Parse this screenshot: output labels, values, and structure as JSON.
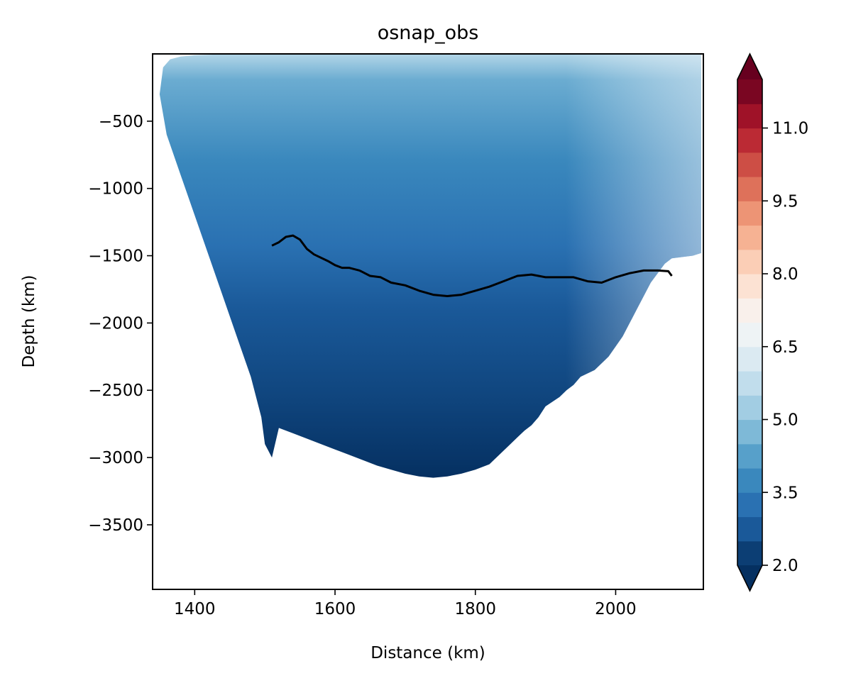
{
  "chart_data": {
    "type": "contour",
    "title": "osnap_obs",
    "xlabel": "Distance (km)",
    "ylabel": "Depth (km)",
    "xlim": [
      1340,
      2125
    ],
    "ylim": [
      -3980,
      0
    ],
    "x_ticks": [
      {
        "value": 1400,
        "label": "1400"
      },
      {
        "value": 1600,
        "label": "1600"
      },
      {
        "value": 1800,
        "label": "1800"
      },
      {
        "value": 2000,
        "label": "2000"
      }
    ],
    "y_ticks": [
      {
        "value": -500,
        "label": "−500"
      },
      {
        "value": -1000,
        "label": "−1000"
      },
      {
        "value": -1500,
        "label": "−1500"
      },
      {
        "value": -2000,
        "label": "−2000"
      },
      {
        "value": -2500,
        "label": "−2500"
      },
      {
        "value": -3000,
        "label": "−3000"
      },
      {
        "value": -3500,
        "label": "−3500"
      }
    ],
    "grid": false,
    "colorbar": {
      "placement": "right",
      "extend": "both",
      "colormap": "RdBu_r",
      "min": 2.0,
      "max": 12.0,
      "step": 0.5,
      "tick_values": [
        2.0,
        3.5,
        5.0,
        6.5,
        8.0,
        9.5,
        11.0
      ],
      "tick_labels": [
        "2.0",
        "3.5",
        "5.0",
        "6.5",
        "8.0",
        "9.5",
        "11.0"
      ]
    },
    "contour_line": {
      "color": "#000000",
      "x": [
        1510,
        1520,
        1530,
        1540,
        1550,
        1560,
        1570,
        1590,
        1600,
        1610,
        1620,
        1635,
        1650,
        1665,
        1680,
        1700,
        1720,
        1740,
        1760,
        1780,
        1800,
        1820,
        1840,
        1860,
        1880,
        1900,
        1920,
        1940,
        1960,
        1980,
        2000,
        2020,
        2040,
        2060,
        2075,
        2080
      ],
      "y": [
        -1425,
        -1400,
        -1360,
        -1350,
        -1380,
        -1450,
        -1490,
        -1540,
        -1570,
        -1590,
        -1590,
        -1610,
        -1650,
        -1660,
        -1700,
        -1720,
        -1760,
        -1790,
        -1800,
        -1790,
        -1760,
        -1730,
        -1690,
        -1650,
        -1640,
        -1660,
        -1660,
        -1660,
        -1690,
        -1700,
        -1660,
        -1630,
        -1610,
        -1610,
        -1615,
        -1650
      ]
    },
    "filled_regions": [
      {
        "value": 4.25,
        "boundary_x": [
          1510,
          1500,
          1495,
          1480,
          1460,
          1440,
          1420,
          1400,
          1380,
          1360,
          1350,
          1355,
          1365,
          1380,
          1400,
          1430,
          1460,
          1500,
          1550,
          1600,
          1660,
          1720,
          1780,
          1840,
          1900,
          1960,
          2020,
          2060,
          2100,
          2122,
          2122,
          2110,
          2080,
          2070,
          2050,
          2030,
          2010,
          1990,
          1970,
          1950,
          1940,
          1930,
          1920,
          1900,
          1890,
          1880,
          1870,
          1860,
          1850,
          1840,
          1830,
          1820,
          1800,
          1780,
          1760,
          1740,
          1720,
          1700,
          1680,
          1660,
          1640,
          1620,
          1600,
          1580,
          1560,
          1540,
          1520,
          1510
        ],
        "boundary_y": [
          -3000,
          -2900,
          -2700,
          -2400,
          -2100,
          -1800,
          -1500,
          -1200,
          -900,
          -600,
          -300,
          -100,
          -40,
          -20,
          -10,
          -5,
          -5,
          -5,
          -5,
          -5,
          -5,
          -5,
          -5,
          -5,
          -5,
          -5,
          -5,
          -5,
          -5,
          -5,
          -1480,
          -1500,
          -1520,
          -1560,
          -1700,
          -1900,
          -2100,
          -2250,
          -2350,
          -2400,
          -2460,
          -2500,
          -2550,
          -2620,
          -2700,
          -2760,
          -2800,
          -2850,
          -2900,
          -2950,
          -3000,
          -3050,
          -3090,
          -3120,
          -3140,
          -3150,
          -3140,
          -3120,
          -3090,
          -3060,
          -3020,
          -2980,
          -2940,
          -2900,
          -2860,
          -2820,
          -2780,
          -3000
        ]
      }
    ]
  }
}
